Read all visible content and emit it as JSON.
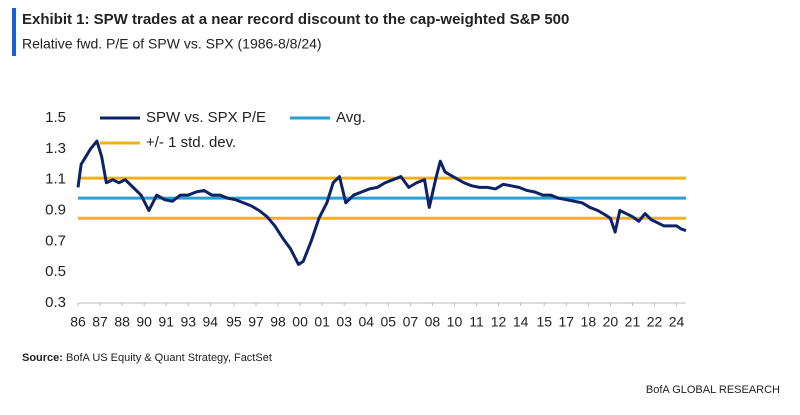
{
  "chart_data": {
    "type": "line",
    "title": "Exhibit 1: SPW trades at a near record discount to the cap-weighted S&P 500",
    "subtitle": "Relative fwd. P/E of SPW vs. SPX (1986-8/8/24)",
    "source_label": "Source:",
    "source": "BofA US Equity & Quant Strategy, FactSet",
    "footer": "BofA GLOBAL RESEARCH",
    "x": [
      1986.0,
      1986.2,
      1986.5,
      1986.8,
      1987.2,
      1987.5,
      1987.8,
      1988.2,
      1988.6,
      1989.0,
      1989.5,
      1990.0,
      1990.5,
      1991.0,
      1991.5,
      1992.0,
      1992.5,
      1993.0,
      1993.5,
      1994.0,
      1994.5,
      1995.0,
      1995.5,
      1996.0,
      1996.5,
      1997.0,
      1997.5,
      1998.0,
      1998.5,
      1999.0,
      1999.5,
      2000.0,
      2000.3,
      2000.8,
      2001.3,
      2001.8,
      2002.2,
      2002.6,
      2003.0,
      2003.5,
      2004.0,
      2004.5,
      2005.0,
      2005.5,
      2006.0,
      2006.5,
      2007.0,
      2007.5,
      2008.0,
      2008.3,
      2008.7,
      2009.0,
      2009.3,
      2009.8,
      2010.5,
      2011.0,
      2011.5,
      2012.0,
      2012.5,
      2013.0,
      2013.5,
      2014.0,
      2014.5,
      2015.0,
      2015.5,
      2016.0,
      2016.5,
      2017.0,
      2017.5,
      2018.0,
      2018.5,
      2019.0,
      2019.5,
      2019.8,
      2020.1,
      2020.4,
      2020.8,
      2021.2,
      2021.6,
      2022.0,
      2022.4,
      2022.8,
      2023.2,
      2023.6,
      2024.0,
      2024.3,
      2024.6
    ],
    "series": [
      {
        "name": "SPW vs. SPX P/E",
        "color": "#0c2466",
        "values": [
          1.05,
          1.2,
          1.25,
          1.3,
          1.35,
          1.25,
          1.08,
          1.1,
          1.08,
          1.1,
          1.05,
          1.0,
          0.9,
          1.0,
          0.97,
          0.96,
          1.0,
          1.0,
          1.02,
          1.03,
          1.0,
          1.0,
          0.98,
          0.97,
          0.95,
          0.93,
          0.9,
          0.86,
          0.8,
          0.72,
          0.65,
          0.55,
          0.57,
          0.7,
          0.85,
          0.95,
          1.08,
          1.12,
          0.95,
          1.0,
          1.02,
          1.04,
          1.05,
          1.08,
          1.1,
          1.12,
          1.05,
          1.08,
          1.1,
          0.92,
          1.1,
          1.22,
          1.15,
          1.12,
          1.08,
          1.06,
          1.05,
          1.05,
          1.04,
          1.07,
          1.06,
          1.05,
          1.03,
          1.02,
          1.0,
          1.0,
          0.98,
          0.97,
          0.96,
          0.95,
          0.92,
          0.9,
          0.87,
          0.85,
          0.76,
          0.9,
          0.88,
          0.86,
          0.83,
          0.88,
          0.84,
          0.82,
          0.8,
          0.8,
          0.8,
          0.78,
          0.77
        ]
      }
    ],
    "lines": [
      {
        "name": "Avg.",
        "color": "#2a9fd6",
        "values": [
          0.98
        ]
      },
      {
        "name": "+/- 1 std. dev.",
        "color": "#f2b01e",
        "values": [
          1.11,
          0.85
        ]
      }
    ],
    "xlim": [
      1986,
      2024.6
    ],
    "ylim": [
      0.3,
      1.5
    ],
    "yticks": [
      0.3,
      0.5,
      0.7,
      0.9,
      1.1,
      1.3,
      1.5
    ],
    "xticks": [
      {
        "value": 1986.0,
        "label": "86"
      },
      {
        "value": 1987.4,
        "label": "87"
      },
      {
        "value": 1988.8,
        "label": "88"
      },
      {
        "value": 1990.2,
        "label": "90"
      },
      {
        "value": 1991.6,
        "label": "91"
      },
      {
        "value": 1993.0,
        "label": "93"
      },
      {
        "value": 1994.4,
        "label": "94"
      },
      {
        "value": 1995.9,
        "label": "95"
      },
      {
        "value": 1997.3,
        "label": "97"
      },
      {
        "value": 1998.7,
        "label": "98"
      },
      {
        "value": 2000.1,
        "label": "00"
      },
      {
        "value": 2001.5,
        "label": "01"
      },
      {
        "value": 2002.9,
        "label": "03"
      },
      {
        "value": 2004.3,
        "label": "04"
      },
      {
        "value": 2005.7,
        "label": "05"
      },
      {
        "value": 2007.1,
        "label": "07"
      },
      {
        "value": 2008.5,
        "label": "08"
      },
      {
        "value": 2009.9,
        "label": "10"
      },
      {
        "value": 2011.3,
        "label": "11"
      },
      {
        "value": 2012.7,
        "label": "12"
      },
      {
        "value": 2014.1,
        "label": "14"
      },
      {
        "value": 2015.6,
        "label": "15"
      },
      {
        "value": 2017.0,
        "label": "17"
      },
      {
        "value": 2018.4,
        "label": "18"
      },
      {
        "value": 2019.8,
        "label": "20"
      },
      {
        "value": 2021.2,
        "label": "21"
      },
      {
        "value": 2022.6,
        "label": "22"
      },
      {
        "value": 2024.0,
        "label": "24"
      }
    ]
  }
}
